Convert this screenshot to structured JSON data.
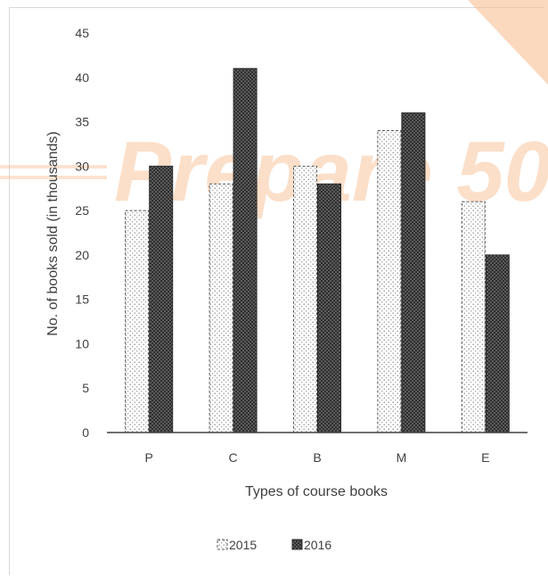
{
  "colors": {
    "s2015_fill": "#ffffff",
    "s2015_pattern": "#7a7a7a",
    "s2016_fill": "#2f2f2f",
    "s2016_pattern": "#9a9a9a",
    "axis": "#404040",
    "watermark": "#f7b98a"
  },
  "watermark": {
    "text": "Prepare 50"
  },
  "chart_data": {
    "type": "bar",
    "title": "",
    "xlabel": "Types of course books",
    "ylabel": "No. of books sold (in thousands)",
    "categories": [
      "P",
      "C",
      "B",
      "M",
      "E"
    ],
    "ylim": [
      0,
      45
    ],
    "yticks": [
      0,
      5,
      10,
      15,
      20,
      25,
      30,
      35,
      40,
      45
    ],
    "grid": false,
    "legend_position": "bottom",
    "series": [
      {
        "name": "2015",
        "values": [
          25,
          28,
          30,
          34,
          26
        ]
      },
      {
        "name": "2016",
        "values": [
          30,
          41,
          28,
          36,
          20
        ]
      }
    ]
  }
}
